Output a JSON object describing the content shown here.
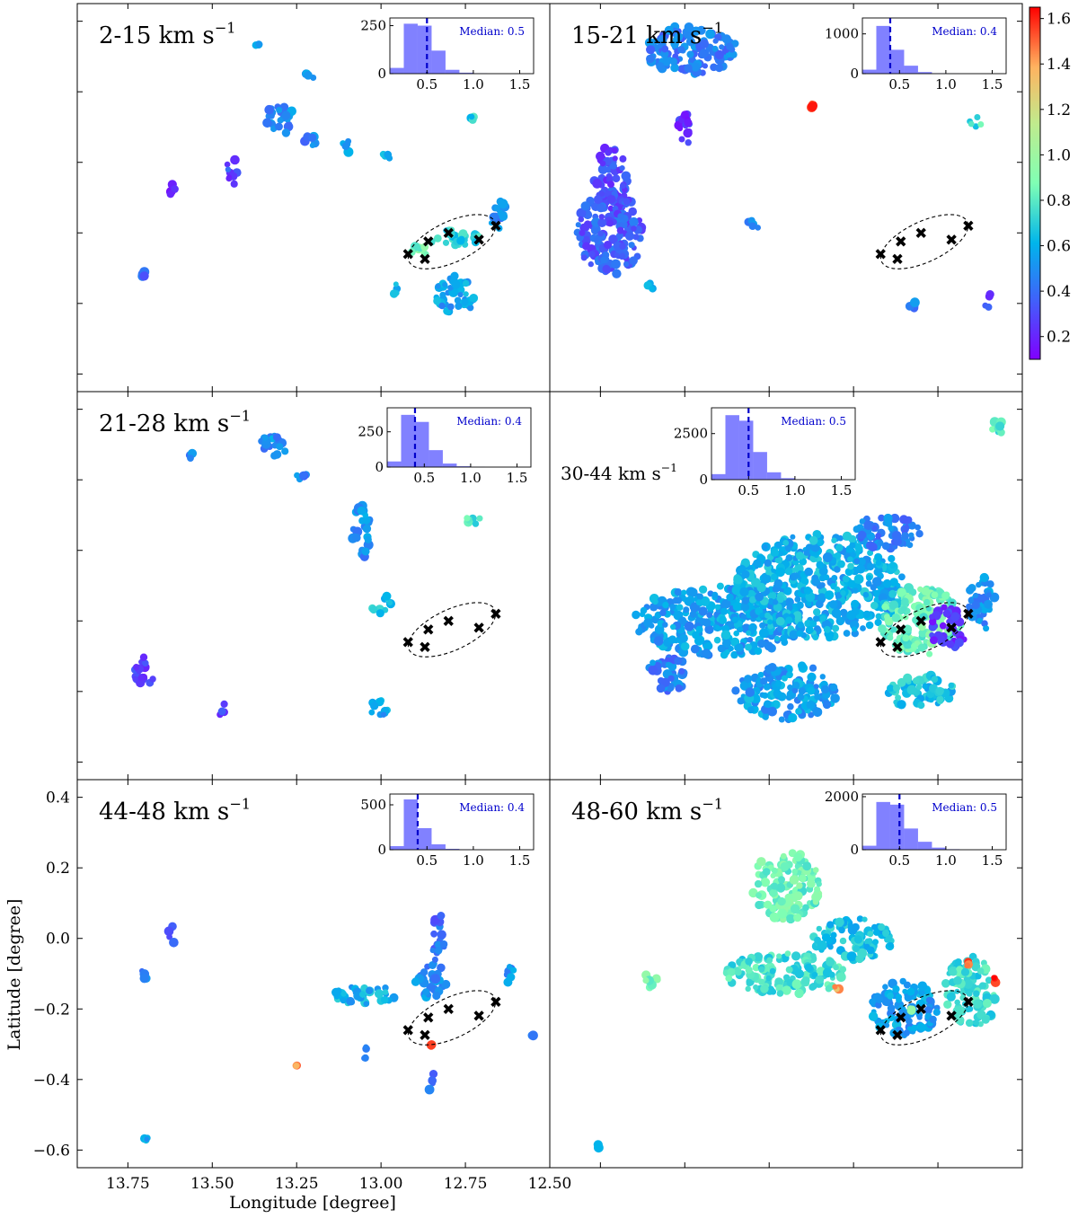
{
  "chart_data": {
    "type": "scatter",
    "description_free": true,
    "xlabel": "Longitude [degree]",
    "ylabel": "Latitude [degree]",
    "xlim": [
      13.9,
      12.5
    ],
    "ylim": [
      -0.65,
      0.45
    ],
    "x_ticks": [
      13.75,
      13.5,
      13.25,
      13.0,
      12.75,
      12.5
    ],
    "x_tick_labels": [
      "13.75",
      "13.50",
      "13.25",
      "13.00",
      "12.75",
      "12.50"
    ],
    "y_ticks": [
      0.4,
      0.2,
      0.0,
      -0.2,
      -0.4,
      -0.6
    ],
    "y_tick_labels": [
      "0.4",
      "0.2",
      "0.0",
      "−0.2",
      "−0.4",
      "−0.6"
    ],
    "colorbar": {
      "range": [
        0.1,
        1.65
      ],
      "ticks": [
        0.2,
        0.4,
        0.6,
        0.8,
        1.0,
        1.2,
        1.4,
        1.6
      ],
      "tick_labels": [
        "0.2",
        "0.4",
        "0.6",
        "0.8",
        "1.0",
        "1.2",
        "1.4",
        "1.6"
      ],
      "colormap": "rainbow"
    },
    "markers": {
      "symbol": "✖",
      "color": "#000000",
      "points": [
        [
          12.92,
          -0.26
        ],
        [
          12.86,
          -0.225
        ],
        [
          12.87,
          -0.275
        ],
        [
          12.8,
          -0.2
        ],
        [
          12.71,
          -0.22
        ],
        [
          12.66,
          -0.18
        ]
      ]
    },
    "ellipse": {
      "center": [
        12.79,
        -0.225
      ],
      "rx_deg": 0.14,
      "ry_deg": 0.14,
      "angle_deg": -25
    },
    "inset": {
      "xlim": [
        0.1,
        1.65
      ],
      "x_ticks": [
        0.5,
        1.0,
        1.5
      ],
      "x_tick_labels": [
        "0.5",
        "1.0",
        "1.5"
      ],
      "bin_edges": [
        0.1,
        0.25,
        0.4,
        0.55,
        0.7,
        0.85,
        1.0,
        1.15
      ],
      "bar_color": "#6b6bff",
      "median_line_color": "#0000cc"
    },
    "panels": [
      {
        "label": "2-15 km s",
        "label_sup": "−1",
        "median_text": "Median: 0.5",
        "median": 0.5,
        "hist_ylim": [
          0,
          290
        ],
        "hist_ticks": [
          0,
          250
        ],
        "hist_tick_labels": [
          "0",
          "250"
        ],
        "hist_counts": [
          30,
          260,
          250,
          120,
          20,
          5,
          2
        ],
        "blobs": [
          [
            13.22,
            0.24,
            0.02,
            0.015,
            0.55
          ],
          [
            13.37,
            0.33,
            0.01,
            0.01,
            0.55
          ],
          [
            13.3,
            0.12,
            0.05,
            0.04,
            0.5
          ],
          [
            13.22,
            0.06,
            0.03,
            0.02,
            0.45
          ],
          [
            13.1,
            0.04,
            0.02,
            0.02,
            0.5
          ],
          [
            12.98,
            0.02,
            0.02,
            0.01,
            0.6
          ],
          [
            12.73,
            0.12,
            0.01,
            0.01,
            0.7
          ],
          [
            13.44,
            -0.03,
            0.02,
            0.04,
            0.3
          ],
          [
            13.62,
            -0.08,
            0.01,
            0.02,
            0.2
          ],
          [
            13.7,
            -0.32,
            0.01,
            0.01,
            0.35
          ],
          [
            12.78,
            -0.22,
            0.08,
            0.03,
            0.7
          ],
          [
            12.65,
            -0.15,
            0.03,
            0.04,
            0.5
          ],
          [
            12.78,
            -0.38,
            0.06,
            0.06,
            0.55
          ],
          [
            12.96,
            -0.36,
            0.01,
            0.02,
            0.6
          ],
          [
            12.88,
            -0.25,
            0.03,
            0.02,
            0.85
          ]
        ]
      },
      {
        "label": "15-21 km s",
        "label_sup": "−1",
        "median_text": "Median: 0.4",
        "median": 0.4,
        "hist_ylim": [
          0,
          1400
        ],
        "hist_ticks": [
          0,
          1000
        ],
        "hist_tick_labels": [
          "0",
          "1000"
        ],
        "hist_counts": [
          100,
          1200,
          600,
          200,
          40,
          10,
          3
        ],
        "blobs": [
          [
            13.48,
            0.32,
            0.14,
            0.07,
            0.45
          ],
          [
            13.5,
            0.08,
            0.02,
            0.06,
            0.25
          ],
          [
            13.72,
            -0.05,
            0.05,
            0.1,
            0.3
          ],
          [
            13.72,
            -0.2,
            0.1,
            0.12,
            0.35
          ],
          [
            13.6,
            -0.35,
            0.01,
            0.01,
            0.55
          ],
          [
            13.12,
            0.16,
            0.005,
            0.01,
            1.55
          ],
          [
            12.83,
            -0.4,
            0.02,
            0.02,
            0.45
          ],
          [
            12.6,
            -0.4,
            0.01,
            0.03,
            0.3
          ],
          [
            12.64,
            0.11,
            0.02,
            0.02,
            0.75
          ],
          [
            13.3,
            -0.18,
            0.02,
            0.02,
            0.5
          ]
        ]
      },
      {
        "label": "21-28 km s",
        "label_sup": "−1",
        "median_text": "Median: 0.4",
        "median": 0.4,
        "hist_ylim": [
          0,
          420
        ],
        "hist_ticks": [
          0,
          250
        ],
        "hist_tick_labels": [
          "0",
          "250"
        ],
        "hist_counts": [
          40,
          370,
          320,
          120,
          25,
          6,
          2
        ],
        "blobs": [
          [
            13.32,
            0.3,
            0.04,
            0.04,
            0.5
          ],
          [
            13.24,
            0.22,
            0.02,
            0.02,
            0.45
          ],
          [
            13.06,
            0.05,
            0.03,
            0.08,
            0.5
          ],
          [
            13.0,
            -0.15,
            0.03,
            0.03,
            0.65
          ],
          [
            12.73,
            0.09,
            0.03,
            0.02,
            0.8
          ],
          [
            13.7,
            -0.35,
            0.03,
            0.05,
            0.3
          ],
          [
            13.47,
            -0.45,
            0.01,
            0.03,
            0.3
          ],
          [
            13.01,
            -0.45,
            0.03,
            0.03,
            0.55
          ],
          [
            13.56,
            0.27,
            0.01,
            0.01,
            0.5
          ]
        ]
      },
      {
        "label": "30-44 km s",
        "label_sup": "−1",
        "median_text": "Median: 0.5",
        "median": 0.5,
        "hist_ylim": [
          0,
          3900
        ],
        "hist_ticks": [
          0,
          2500
        ],
        "hist_tick_labels": [
          "0",
          "2500"
        ],
        "hist_counts": [
          300,
          3500,
          3200,
          1500,
          400,
          80,
          20
        ],
        "blobs": [
          [
            13.4,
            -0.2,
            0.25,
            0.1,
            0.55
          ],
          [
            13.1,
            -0.1,
            0.25,
            0.15,
            0.6
          ],
          [
            12.8,
            -0.2,
            0.12,
            0.1,
            0.85
          ],
          [
            12.72,
            -0.22,
            0.06,
            0.06,
            0.25
          ],
          [
            12.9,
            0.05,
            0.1,
            0.05,
            0.45
          ],
          [
            13.2,
            -0.4,
            0.15,
            0.08,
            0.55
          ],
          [
            12.8,
            -0.4,
            0.1,
            0.05,
            0.65
          ],
          [
            12.58,
            0.35,
            0.03,
            0.02,
            0.8
          ],
          [
            13.55,
            -0.35,
            0.06,
            0.05,
            0.45
          ],
          [
            12.62,
            -0.15,
            0.04,
            0.08,
            0.5
          ]
        ]
      },
      {
        "label": "44-48 km s",
        "label_sup": "−1",
        "median_text": "Median:  0.4",
        "median": 0.4,
        "hist_ylim": [
          0,
          620
        ],
        "hist_ticks": [
          0,
          500
        ],
        "hist_tick_labels": [
          "0",
          "500"
        ],
        "hist_counts": [
          40,
          560,
          240,
          60,
          10,
          3,
          1
        ],
        "blobs": [
          [
            13.05,
            -0.16,
            0.1,
            0.03,
            0.6
          ],
          [
            12.85,
            -0.12,
            0.05,
            0.05,
            0.5
          ],
          [
            12.83,
            0.0,
            0.02,
            0.08,
            0.4
          ],
          [
            13.62,
            0.01,
            0.01,
            0.03,
            0.4
          ],
          [
            13.7,
            -0.1,
            0.01,
            0.02,
            0.5
          ],
          [
            13.7,
            -0.57,
            0.01,
            0.01,
            0.6
          ],
          [
            12.85,
            -0.4,
            0.01,
            0.04,
            0.4
          ],
          [
            13.25,
            -0.36,
            0.002,
            0.002,
            1.45
          ],
          [
            12.85,
            -0.3,
            0.003,
            0.003,
            1.6
          ],
          [
            12.62,
            -0.1,
            0.02,
            0.03,
            0.5
          ],
          [
            12.55,
            -0.28,
            0.01,
            0.01,
            0.5
          ],
          [
            13.05,
            -0.32,
            0.01,
            0.03,
            0.45
          ]
        ]
      },
      {
        "label": "48-60 km s",
        "label_sup": "−1",
        "median_text": "Median: 0.5",
        "median": 0.5,
        "hist_ylim": [
          0,
          2100
        ],
        "hist_ticks": [
          0,
          2000
        ],
        "hist_tick_labels": [
          "0",
          "2000"
        ],
        "hist_counts": [
          150,
          1800,
          1700,
          800,
          300,
          80,
          20
        ],
        "blobs": [
          [
            13.2,
            0.15,
            0.1,
            0.1,
            0.85
          ],
          [
            13.0,
            0.0,
            0.12,
            0.06,
            0.65
          ],
          [
            13.2,
            -0.1,
            0.18,
            0.06,
            0.75
          ],
          [
            12.85,
            -0.2,
            0.1,
            0.08,
            0.55
          ],
          [
            12.65,
            -0.15,
            0.08,
            0.1,
            0.75
          ],
          [
            12.58,
            -0.12,
            0.01,
            0.01,
            1.55
          ],
          [
            12.66,
            -0.07,
            0.01,
            0.01,
            1.5
          ],
          [
            13.05,
            -0.14,
            0.01,
            0.01,
            1.35
          ],
          [
            13.6,
            -0.12,
            0.03,
            0.02,
            0.85
          ],
          [
            13.75,
            -0.59,
            0.01,
            0.01,
            0.55
          ],
          [
            12.83,
            -0.2,
            0.005,
            0.005,
            0.95
          ]
        ]
      }
    ]
  }
}
